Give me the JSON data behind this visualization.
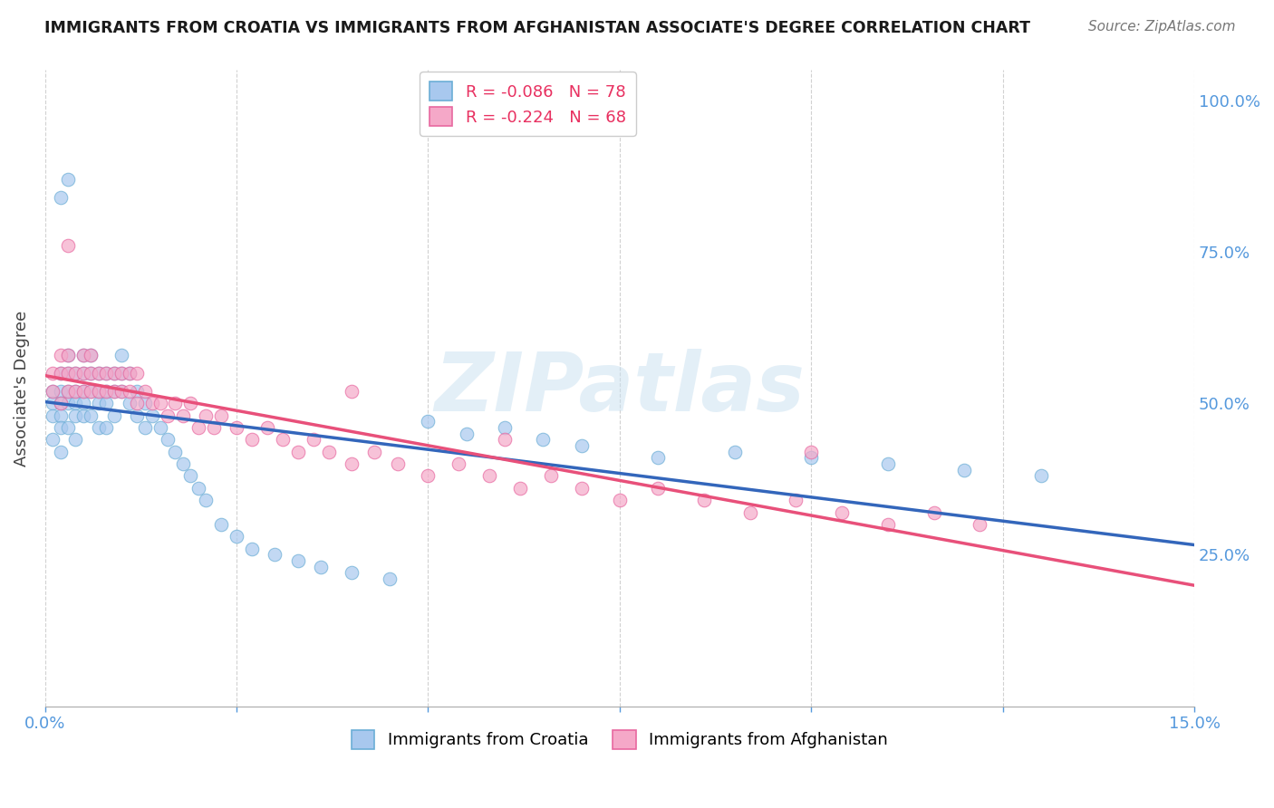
{
  "title": "IMMIGRANTS FROM CROATIA VS IMMIGRANTS FROM AFGHANISTAN ASSOCIATE'S DEGREE CORRELATION CHART",
  "source_text": "Source: ZipAtlas.com",
  "ylabel": "Associate's Degree",
  "xlim": [
    0.0,
    0.15
  ],
  "ylim": [
    0.0,
    1.05
  ],
  "ytick_positions": [
    0.25,
    0.5,
    0.75,
    1.0
  ],
  "ytick_labels": [
    "25.0%",
    "50.0%",
    "75.0%",
    "100.0%"
  ],
  "xtick_positions": [
    0.0,
    0.025,
    0.05,
    0.075,
    0.1,
    0.125,
    0.15
  ],
  "xtick_labels": [
    "0.0%",
    "",
    "",
    "",
    "",
    "",
    "15.0%"
  ],
  "croatia_face_color": "#a8c8ee",
  "croatia_edge_color": "#6baed6",
  "afghanistan_face_color": "#f5a8c8",
  "afghanistan_edge_color": "#e868a0",
  "croatia_line_color": "#3366bb",
  "afghanistan_line_color": "#e8507a",
  "watermark": "ZIPatlas",
  "axis_tick_color": "#5599dd",
  "legend_text_color": "#e83060",
  "legend_N_color": "#22aa22",
  "croatia_R": -0.086,
  "croatia_N": 78,
  "afghanistan_R": -0.224,
  "afghanistan_N": 68,
  "croatia_x": [
    0.001,
    0.001,
    0.001,
    0.001,
    0.002,
    0.002,
    0.002,
    0.002,
    0.002,
    0.002,
    0.003,
    0.003,
    0.003,
    0.003,
    0.003,
    0.004,
    0.004,
    0.004,
    0.004,
    0.004,
    0.005,
    0.005,
    0.005,
    0.005,
    0.005,
    0.006,
    0.006,
    0.006,
    0.006,
    0.007,
    0.007,
    0.007,
    0.007,
    0.008,
    0.008,
    0.008,
    0.008,
    0.009,
    0.009,
    0.009,
    0.01,
    0.01,
    0.01,
    0.011,
    0.011,
    0.012,
    0.012,
    0.013,
    0.013,
    0.014,
    0.015,
    0.016,
    0.017,
    0.018,
    0.019,
    0.02,
    0.021,
    0.023,
    0.025,
    0.027,
    0.03,
    0.033,
    0.036,
    0.04,
    0.045,
    0.05,
    0.055,
    0.06,
    0.065,
    0.07,
    0.08,
    0.09,
    0.1,
    0.11,
    0.12,
    0.13,
    0.003,
    0.002
  ],
  "croatia_y": [
    0.52,
    0.5,
    0.48,
    0.44,
    0.55,
    0.52,
    0.5,
    0.48,
    0.46,
    0.42,
    0.58,
    0.55,
    0.52,
    0.5,
    0.46,
    0.55,
    0.52,
    0.5,
    0.48,
    0.44,
    0.58,
    0.55,
    0.52,
    0.5,
    0.48,
    0.58,
    0.55,
    0.52,
    0.48,
    0.55,
    0.52,
    0.5,
    0.46,
    0.55,
    0.52,
    0.5,
    0.46,
    0.55,
    0.52,
    0.48,
    0.58,
    0.55,
    0.52,
    0.55,
    0.5,
    0.52,
    0.48,
    0.5,
    0.46,
    0.48,
    0.46,
    0.44,
    0.42,
    0.4,
    0.38,
    0.36,
    0.34,
    0.3,
    0.28,
    0.26,
    0.25,
    0.24,
    0.23,
    0.22,
    0.21,
    0.47,
    0.45,
    0.46,
    0.44,
    0.43,
    0.41,
    0.42,
    0.41,
    0.4,
    0.39,
    0.38,
    0.87,
    0.84
  ],
  "afghanistan_x": [
    0.001,
    0.001,
    0.002,
    0.002,
    0.002,
    0.003,
    0.003,
    0.003,
    0.004,
    0.004,
    0.005,
    0.005,
    0.005,
    0.006,
    0.006,
    0.006,
    0.007,
    0.007,
    0.008,
    0.008,
    0.009,
    0.009,
    0.01,
    0.01,
    0.011,
    0.011,
    0.012,
    0.012,
    0.013,
    0.014,
    0.015,
    0.016,
    0.017,
    0.018,
    0.019,
    0.02,
    0.021,
    0.022,
    0.023,
    0.025,
    0.027,
    0.029,
    0.031,
    0.033,
    0.035,
    0.037,
    0.04,
    0.043,
    0.046,
    0.05,
    0.054,
    0.058,
    0.062,
    0.066,
    0.07,
    0.075,
    0.08,
    0.086,
    0.092,
    0.098,
    0.104,
    0.11,
    0.116,
    0.122,
    0.1,
    0.04,
    0.06,
    0.003
  ],
  "afghanistan_y": [
    0.55,
    0.52,
    0.58,
    0.55,
    0.5,
    0.58,
    0.55,
    0.52,
    0.55,
    0.52,
    0.58,
    0.55,
    0.52,
    0.58,
    0.55,
    0.52,
    0.55,
    0.52,
    0.55,
    0.52,
    0.55,
    0.52,
    0.55,
    0.52,
    0.55,
    0.52,
    0.55,
    0.5,
    0.52,
    0.5,
    0.5,
    0.48,
    0.5,
    0.48,
    0.5,
    0.46,
    0.48,
    0.46,
    0.48,
    0.46,
    0.44,
    0.46,
    0.44,
    0.42,
    0.44,
    0.42,
    0.4,
    0.42,
    0.4,
    0.38,
    0.4,
    0.38,
    0.36,
    0.38,
    0.36,
    0.34,
    0.36,
    0.34,
    0.32,
    0.34,
    0.32,
    0.3,
    0.32,
    0.3,
    0.42,
    0.52,
    0.44,
    0.76
  ]
}
